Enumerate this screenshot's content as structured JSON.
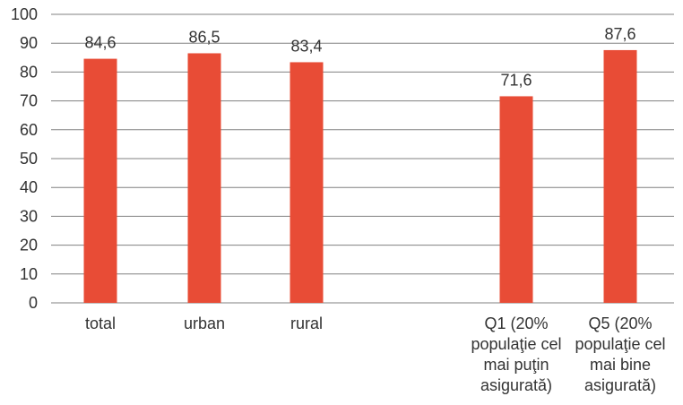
{
  "chart_data": {
    "type": "bar",
    "categories": [
      [
        "total"
      ],
      [
        "urban"
      ],
      [
        "rural"
      ],
      [],
      [
        "Q1 (20%",
        "populaţie cel",
        "mai puţin",
        "asigurată)"
      ],
      [
        "Q5 (20%",
        "populaţie cel",
        "mai bine",
        "asigurată)"
      ]
    ],
    "values": [
      84.6,
      86.5,
      83.4,
      null,
      71.6,
      87.6
    ],
    "data_labels": [
      "84,6",
      "86,5",
      "83,4",
      "",
      "71,6",
      "87,6"
    ],
    "ylim": [
      0,
      100
    ],
    "yticks": [
      0,
      10,
      20,
      30,
      40,
      50,
      60,
      70,
      80,
      90,
      100
    ],
    "grid": true,
    "bar_color": "#e84c36",
    "grid_color": "#808080",
    "text_color": "#333333"
  }
}
